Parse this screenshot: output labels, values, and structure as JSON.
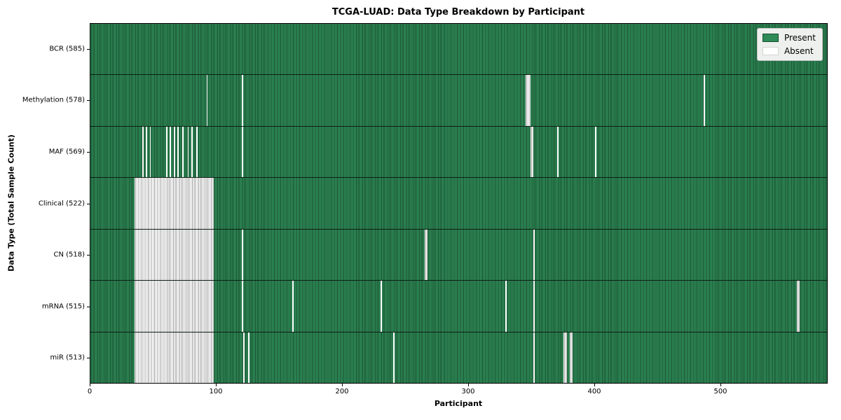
{
  "chart_data": {
    "type": "heatmap",
    "title": "TCGA-LUAD: Data Type Breakdown by Participant",
    "xlabel": "Participant",
    "ylabel": "Data Type (Total Sample Count)",
    "x_ticks": [
      0,
      100,
      200,
      300,
      400,
      500
    ],
    "x_max": 585,
    "grid": false,
    "legend_position": "upper right",
    "legend": [
      {
        "label": "Present",
        "color": "#2e8b57"
      },
      {
        "label": "Absent",
        "color": "#ffffff"
      }
    ],
    "colors": {
      "present_fill": "#2e8b57",
      "present_edge": "#1a4e2f",
      "absent_fill": "#ffffff",
      "absent_edge": "#a0a0a0",
      "row_separator": "#0d1f14"
    },
    "rows": [
      {
        "label": "BCR (585)",
        "data_type": "BCR",
        "present_count": 585,
        "absent_ranges": []
      },
      {
        "label": "Methylation (578)",
        "data_type": "Methylation",
        "present_count": 578,
        "absent_ranges": [
          [
            92,
            1
          ],
          [
            120,
            1
          ],
          [
            345,
            4
          ],
          [
            486,
            1
          ]
        ]
      },
      {
        "label": "MAF (569)",
        "data_type": "MAF",
        "present_count": 569,
        "absent_ranges": [
          [
            41,
            1
          ],
          [
            44,
            1
          ],
          [
            47,
            1
          ],
          [
            60,
            1
          ],
          [
            63,
            1
          ],
          [
            66,
            1
          ],
          [
            69,
            1
          ],
          [
            73,
            1
          ],
          [
            77,
            1
          ],
          [
            80,
            1
          ],
          [
            84,
            1
          ],
          [
            120,
            1
          ],
          [
            349,
            2
          ],
          [
            370,
            1
          ],
          [
            400,
            1
          ]
        ]
      },
      {
        "label": "Clinical (522)",
        "data_type": "Clinical",
        "present_count": 522,
        "absent_ranges": [
          [
            35,
            63
          ]
        ]
      },
      {
        "label": "CN (518)",
        "data_type": "CN",
        "present_count": 518,
        "absent_ranges": [
          [
            35,
            63
          ],
          [
            120,
            1
          ],
          [
            265,
            2
          ],
          [
            351,
            1
          ]
        ]
      },
      {
        "label": "mRNA (515)",
        "data_type": "mRNA",
        "present_count": 515,
        "absent_ranges": [
          [
            35,
            63
          ],
          [
            120,
            1
          ],
          [
            160,
            1
          ],
          [
            230,
            1
          ],
          [
            329,
            1
          ],
          [
            351,
            1
          ],
          [
            560,
            2
          ]
        ]
      },
      {
        "label": "miR (513)",
        "data_type": "miR",
        "present_count": 513,
        "absent_ranges": [
          [
            35,
            63
          ],
          [
            121,
            1
          ],
          [
            125,
            1
          ],
          [
            240,
            1
          ],
          [
            351,
            1
          ],
          [
            375,
            3
          ],
          [
            380,
            2
          ]
        ]
      }
    ]
  }
}
